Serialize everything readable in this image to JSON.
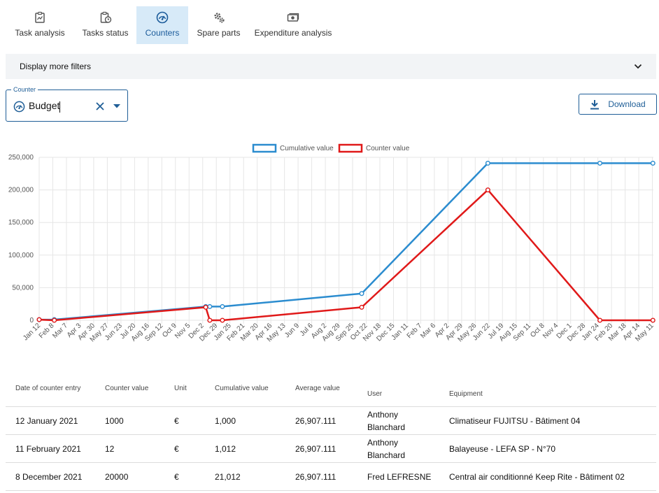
{
  "tabs": [
    {
      "label": "Task analysis",
      "icon": "clipboard-chart-icon",
      "active": false
    },
    {
      "label": "Tasks status",
      "icon": "clipboard-clock-icon",
      "active": false
    },
    {
      "label": "Counters",
      "icon": "gauge-icon",
      "active": true
    },
    {
      "label": "Spare parts",
      "icon": "gears-icon",
      "active": false
    },
    {
      "label": "Expenditure analysis",
      "icon": "money-icon",
      "active": false
    }
  ],
  "filters": {
    "label": "Display more filters"
  },
  "counter_select": {
    "legend": "Counter",
    "value": "Budget"
  },
  "download": {
    "label": "Download"
  },
  "colors": {
    "accent": "#1f5e97",
    "cumulative": "#2b8ccf",
    "counter": "#e01919",
    "active_tab_bg": "#d7eaf8"
  },
  "chart_data": {
    "type": "line",
    "legend": [
      "Cumulative value",
      "Counter value"
    ],
    "legend_position": "top-center",
    "grid": true,
    "ylim": [
      0,
      250000
    ],
    "y_ticks": [
      "0",
      "50,000",
      "100,000",
      "150,000",
      "200,000",
      "250,000"
    ],
    "x_tick_labels": [
      "Jan 12",
      "Feb 8",
      "Mar 7",
      "Apr 3",
      "Apr 30",
      "May 27",
      "Jun 23",
      "Jul 20",
      "Aug 16",
      "Sep 12",
      "Oct 9",
      "Nov 5",
      "Dec 2",
      "Dec 29",
      "Jan 25",
      "Feb 21",
      "Mar 20",
      "Apr 16",
      "May 13",
      "Jun 9",
      "Jul 6",
      "Aug 2",
      "Aug 29",
      "Sep 25",
      "Oct 22",
      "Nov 18",
      "Dec 15",
      "Jan 11",
      "Feb 7",
      "Mar 6",
      "Apr 2",
      "Apr 29",
      "May 26",
      "Jun 22",
      "Jul 19",
      "Aug 15",
      "Sep 11",
      "Oct 8",
      "Nov 4",
      "Dec 1",
      "Dec 28",
      "Jan 24",
      "Feb 20",
      "Mar 18",
      "Apr 14",
      "May 11"
    ],
    "x_tick_start": "2021-01-12",
    "x_tick_step_days": 27,
    "series": [
      {
        "name": "Cumulative value",
        "points": [
          {
            "x": "2021-01-12",
            "y": 1000
          },
          {
            "x": "2021-02-11",
            "y": 1012
          },
          {
            "x": "2021-12-08",
            "y": 21012
          },
          {
            "x": "2021-12-16",
            "y": 21012
          },
          {
            "x": "2022-01-10",
            "y": 21012
          },
          {
            "x": "2022-10-13",
            "y": 41012
          },
          {
            "x": "2023-06-20",
            "y": 241012
          },
          {
            "x": "2024-01-28",
            "y": 241012
          },
          {
            "x": "2024-05-12",
            "y": 241012
          }
        ]
      },
      {
        "name": "Counter value",
        "points": [
          {
            "x": "2021-01-12",
            "y": 1000
          },
          {
            "x": "2021-02-11",
            "y": 12
          },
          {
            "x": "2021-12-08",
            "y": 20000
          },
          {
            "x": "2021-12-16",
            "y": 0
          },
          {
            "x": "2022-01-10",
            "y": 0
          },
          {
            "x": "2022-10-13",
            "y": 20000
          },
          {
            "x": "2023-06-20",
            "y": 200000
          },
          {
            "x": "2024-01-28",
            "y": 0
          },
          {
            "x": "2024-05-12",
            "y": 0
          }
        ]
      }
    ]
  },
  "table": {
    "headers": [
      "Date of counter entry",
      "Counter value",
      "Unit",
      "Cumulative value",
      "Average value",
      "User",
      "Equipment"
    ],
    "rows": [
      {
        "date": "12 January 2021",
        "counter_value": "1000",
        "unit": "€",
        "cumulative": "1,000",
        "average": "26,907.111",
        "user": "Anthony Blanchard",
        "equipment": "Climatiseur FUJITSU - Bâtiment 04"
      },
      {
        "date": "11 February 2021",
        "counter_value": "12",
        "unit": "€",
        "cumulative": "1,012",
        "average": "26,907.111",
        "user": "Anthony Blanchard",
        "equipment": "Balayeuse - LEFA SP - N°70"
      },
      {
        "date": "8 December 2021",
        "counter_value": "20000",
        "unit": "€",
        "cumulative": "21,012",
        "average": "26,907.111",
        "user": "Fred LEFRESNE",
        "equipment": "Central air conditionné Keep Rite - Bâtiment 02"
      }
    ]
  }
}
